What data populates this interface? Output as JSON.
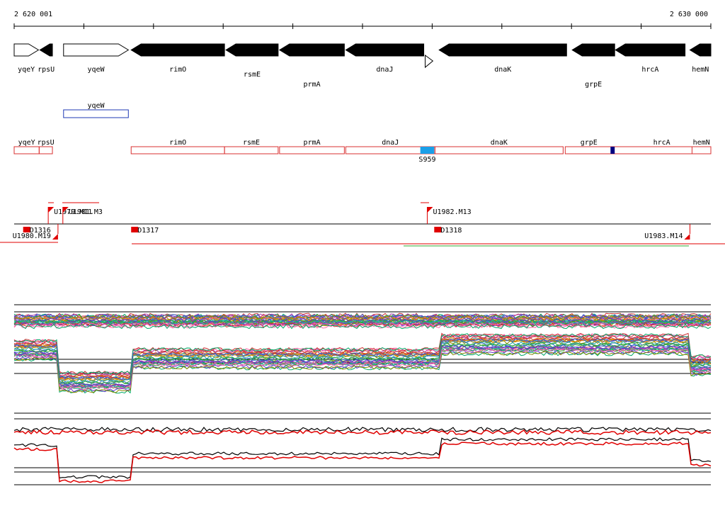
{
  "coords": {
    "start": "2 620 001",
    "end": "2 630 000"
  },
  "genes_top": [
    {
      "name": "yqeY",
      "strand": "+",
      "outline": true,
      "from": 2620001,
      "to": 2620350
    },
    {
      "name": "rpsU",
      "strand": "-",
      "outline": false,
      "from": 2620370,
      "to": 2620550
    },
    {
      "name": "yqeW",
      "strand": "+",
      "outline": true,
      "from": 2620710,
      "to": 2621640
    },
    {
      "name": "rimO",
      "strand": "-",
      "outline": false,
      "from": 2621680,
      "to": 2623020
    },
    {
      "name": "rsmE",
      "strand": "-",
      "outline": false,
      "from": 2623040,
      "to": 2623790
    },
    {
      "name": "prmA",
      "strand": "-",
      "outline": false,
      "from": 2623810,
      "to": 2624740
    },
    {
      "name": "dnaJ",
      "strand": "-",
      "outline": false,
      "from": 2624760,
      "to": 2625880
    },
    {
      "name": "",
      "strand": "+",
      "outline": true,
      "from": 2625900,
      "to": 2626010
    },
    {
      "name": "dnaK",
      "strand": "-",
      "outline": false,
      "from": 2626100,
      "to": 2627930
    },
    {
      "name": "grpE",
      "strand": "-",
      "outline": false,
      "from": 2628010,
      "to": 2628620
    },
    {
      "name": "hrcA",
      "strand": "-",
      "outline": false,
      "from": 2628630,
      "to": 2629630
    },
    {
      "name": "hemN",
      "strand": "-",
      "outline": false,
      "from": 2629700,
      "to": 2630000
    }
  ],
  "blue_track": [
    {
      "name": "yqeW",
      "from": 2620710,
      "to": 2621640
    }
  ],
  "red_track": [
    {
      "name": "yqeY",
      "from": 2620001,
      "to": 2620360
    },
    {
      "name": "rpsU",
      "from": 2620360,
      "to": 2620550
    },
    {
      "name": "rimO",
      "from": 2621680,
      "to": 2623020
    },
    {
      "name": "rsmE",
      "from": 2623020,
      "to": 2623790
    },
    {
      "name": "prmA",
      "from": 2623810,
      "to": 2624740
    },
    {
      "name": "dnaJ",
      "from": 2624760,
      "to": 2626040
    },
    {
      "name": "dnaK",
      "from": 2626040,
      "to": 2627880
    },
    {
      "name": "grpE",
      "from": 2627910,
      "to": 2628590
    },
    {
      "name": "hrcA",
      "from": 2628590,
      "to": 2630000
    },
    {
      "name": "hemN",
      "from": 2629730,
      "to": 2630000
    }
  ],
  "features": [
    {
      "name": "S959",
      "from": 2625830,
      "to": 2626030,
      "color": "#1a9fe8"
    },
    {
      "name": "",
      "from": 2628560,
      "to": 2628620,
      "color": "#000080"
    }
  ],
  "tss": [
    {
      "name": "U1979.M11",
      "pos": 2620490,
      "row": "top"
    },
    {
      "name": "U1981.M3",
      "pos": 2620700,
      "row": "top"
    },
    {
      "name": "U1982.M13",
      "pos": 2625930,
      "row": "top"
    },
    {
      "name": "D1316",
      "pos": 2620130,
      "row": "bottom"
    },
    {
      "name": "D1317",
      "pos": 2621680,
      "row": "bottom"
    },
    {
      "name": "D1318",
      "pos": 2626030,
      "row": "bottom"
    },
    {
      "name": "U1980.M19",
      "pos": 2620630,
      "row": "end"
    },
    {
      "name": "U1983.M14",
      "pos": 2629700,
      "row": "end"
    }
  ],
  "colors": {
    "gene": "#000000",
    "blue_box": "#1f3ab5",
    "red_box": "#d93030",
    "tss": "#e00000",
    "green_segment": "#33aa33",
    "reference_line": "#000000",
    "highlight_line": "#e00000"
  }
}
